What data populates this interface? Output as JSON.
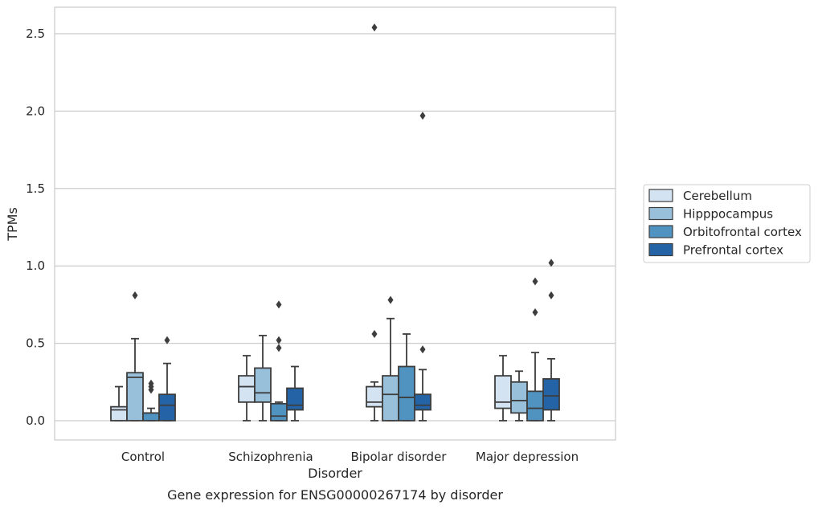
{
  "chart_data": {
    "type": "box",
    "title": "",
    "caption": "Gene expression for ENSG00000267174 by disorder",
    "xlabel": "Disorder",
    "ylabel": "TPMs",
    "ylim": [
      -0.12,
      2.67
    ],
    "yticks": [
      0.0,
      0.5,
      1.0,
      1.5,
      2.0,
      2.5
    ],
    "ytick_labels": [
      "0.0",
      "0.5",
      "1.0",
      "1.5",
      "2.0",
      "2.5"
    ],
    "grid": "horizontal",
    "legend_position": "right-center",
    "categories": [
      "Control",
      "Schizophrenia",
      "Bipolar disorder",
      "Major depression"
    ],
    "series": [
      {
        "name": "Cerebellum",
        "color": "#d4e3f1",
        "boxes": [
          {
            "q1": 0.0,
            "median": 0.07,
            "q3": 0.09,
            "whislo": 0.0,
            "whishi": 0.22,
            "fliers": []
          },
          {
            "q1": 0.12,
            "median": 0.22,
            "q3": 0.29,
            "whislo": 0.0,
            "whishi": 0.42,
            "fliers": []
          },
          {
            "q1": 0.09,
            "median": 0.12,
            "q3": 0.22,
            "whislo": 0.0,
            "whishi": 0.25,
            "fliers": [
              0.56,
              2.54
            ]
          },
          {
            "q1": 0.08,
            "median": 0.12,
            "q3": 0.29,
            "whislo": 0.0,
            "whishi": 0.42,
            "fliers": []
          }
        ]
      },
      {
        "name": "Hipppocampus",
        "color": "#99c0db",
        "boxes": [
          {
            "q1": 0.0,
            "median": 0.28,
            "q3": 0.31,
            "whislo": 0.0,
            "whishi": 0.53,
            "fliers": [
              0.81
            ]
          },
          {
            "q1": 0.12,
            "median": 0.18,
            "q3": 0.34,
            "whislo": 0.0,
            "whishi": 0.55,
            "fliers": []
          },
          {
            "q1": 0.0,
            "median": 0.17,
            "q3": 0.29,
            "whislo": 0.0,
            "whishi": 0.66,
            "fliers": [
              0.78
            ]
          },
          {
            "q1": 0.05,
            "median": 0.13,
            "q3": 0.25,
            "whislo": 0.0,
            "whishi": 0.32,
            "fliers": []
          }
        ]
      },
      {
        "name": "Orbitofrontal cortex",
        "color": "#5093c0",
        "boxes": [
          {
            "q1": 0.0,
            "median": 0.05,
            "q3": 0.05,
            "whislo": 0.0,
            "whishi": 0.08,
            "fliers": [
              0.2,
              0.22,
              0.24
            ]
          },
          {
            "q1": 0.0,
            "median": 0.03,
            "q3": 0.11,
            "whislo": 0.0,
            "whishi": 0.12,
            "fliers": [
              0.47,
              0.52,
              0.75
            ]
          },
          {
            "q1": 0.0,
            "median": 0.15,
            "q3": 0.35,
            "whislo": 0.0,
            "whishi": 0.56,
            "fliers": []
          },
          {
            "q1": 0.0,
            "median": 0.08,
            "q3": 0.19,
            "whislo": 0.0,
            "whishi": 0.44,
            "fliers": [
              0.7,
              0.9
            ]
          }
        ]
      },
      {
        "name": "Prefrontal cortex",
        "color": "#2463a5",
        "boxes": [
          {
            "q1": 0.0,
            "median": 0.1,
            "q3": 0.17,
            "whislo": 0.0,
            "whishi": 0.37,
            "fliers": [
              0.52
            ]
          },
          {
            "q1": 0.07,
            "median": 0.1,
            "q3": 0.21,
            "whislo": 0.0,
            "whishi": 0.35,
            "fliers": []
          },
          {
            "q1": 0.07,
            "median": 0.1,
            "q3": 0.17,
            "whislo": 0.0,
            "whishi": 0.33,
            "fliers": [
              0.46,
              1.97
            ]
          },
          {
            "q1": 0.07,
            "median": 0.16,
            "q3": 0.27,
            "whislo": 0.0,
            "whishi": 0.4,
            "fliers": [
              0.81,
              1.02
            ]
          }
        ]
      }
    ]
  }
}
